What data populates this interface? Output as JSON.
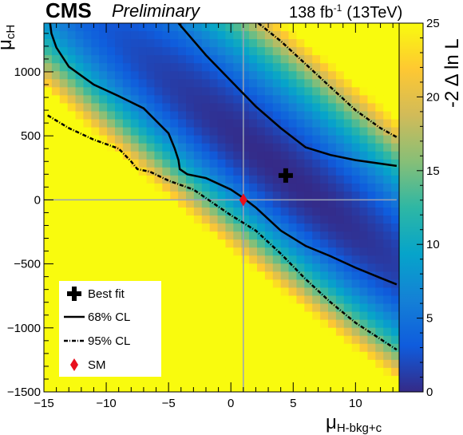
{
  "header": {
    "experiment": "CMS",
    "status": "Preliminary",
    "lumi_value": "138 fb",
    "lumi_exp": "-1",
    "energy": "(13TeV)"
  },
  "chart_data": {
    "type": "heatmap",
    "xlabel_main": "μ",
    "xlabel_sub": "H-bkg+c",
    "ylabel_main": "μ",
    "ylabel_sub": "cH",
    "zlabel": "-2 Δ ln L",
    "xlim": [
      -15,
      13.5
    ],
    "ylim": [
      -1500,
      1380
    ],
    "zlim": [
      0,
      25
    ],
    "x_ticks": [
      -15,
      -10,
      -5,
      0,
      5,
      10
    ],
    "x_tick_labels": [
      "−15",
      "−10",
      "−5",
      "0",
      "5",
      "10"
    ],
    "y_ticks": [
      -1500,
      -1000,
      -500,
      0,
      500,
      1000
    ],
    "y_tick_labels": [
      "−1500",
      "−1000",
      "−500",
      "0",
      "500",
      "1000"
    ],
    "z_ticks": [
      0,
      5,
      10,
      15,
      20,
      25
    ],
    "z_tick_labels": [
      "0",
      "5",
      "10",
      "15",
      "20",
      "25"
    ],
    "colormap": [
      "#352a87",
      "#0f5cdd",
      "#1481d6",
      "#06a4ca",
      "#2eb7a4",
      "#87bf77",
      "#d1bb59",
      "#fec832",
      "#f9fb0e"
    ],
    "best_fit": {
      "x": 4.4,
      "y": 190
    },
    "sm": {
      "x": 1.0,
      "y": 0
    },
    "contour_68_upper": [
      [
        -4.2,
        1380
      ],
      [
        -2,
        1130
      ],
      [
        0,
        930
      ],
      [
        2,
        730
      ],
      [
        4,
        560
      ],
      [
        6,
        410
      ],
      [
        8,
        350
      ],
      [
        10,
        310
      ],
      [
        13.3,
        265
      ]
    ],
    "contour_68_lower": [
      [
        -14.5,
        1380
      ],
      [
        -14.4,
        1300
      ],
      [
        -14,
        1190
      ],
      [
        -13,
        1040
      ],
      [
        -11,
        900
      ],
      [
        -9,
        810
      ],
      [
        -7,
        715
      ],
      [
        -5,
        520
      ],
      [
        -4.5,
        400
      ],
      [
        -4.2,
        310
      ],
      [
        -4.1,
        240
      ],
      [
        -3.5,
        200
      ],
      [
        -2,
        170
      ],
      [
        0,
        80
      ],
      [
        1,
        15
      ],
      [
        2,
        -60
      ],
      [
        4,
        -240
      ],
      [
        6,
        -360
      ],
      [
        8,
        -440
      ],
      [
        10,
        -530
      ],
      [
        12,
        -610
      ],
      [
        13.3,
        -660
      ]
    ],
    "contour_95_upper": [
      [
        2.2,
        1380
      ],
      [
        4,
        1240
      ],
      [
        6,
        1060
      ],
      [
        8,
        880
      ],
      [
        10,
        700
      ],
      [
        12,
        560
      ],
      [
        13.3,
        490
      ]
    ],
    "contour_95_lower": [
      [
        -14.7,
        660
      ],
      [
        -13,
        560
      ],
      [
        -11,
        470
      ],
      [
        -9,
        400
      ],
      [
        -8,
        300
      ],
      [
        -7.5,
        240
      ],
      [
        -6.5,
        220
      ],
      [
        -5,
        150
      ],
      [
        -3,
        80
      ],
      [
        -1.5,
        -20
      ],
      [
        0,
        -120
      ],
      [
        2,
        -240
      ],
      [
        4,
        -420
      ],
      [
        6,
        -620
      ],
      [
        8,
        -800
      ],
      [
        10,
        -960
      ],
      [
        13.3,
        -1170
      ]
    ],
    "legend": {
      "position": "bottom-left",
      "entries": [
        {
          "label": "Best fit",
          "marker": "cross"
        },
        {
          "label": "68% CL",
          "marker": "solid-line"
        },
        {
          "label": "95% CL",
          "marker": "dashed-line"
        },
        {
          "label": "SM",
          "marker": "red-diamond"
        }
      ]
    },
    "reference_lines": {
      "x": 1.0,
      "y": 0
    }
  }
}
